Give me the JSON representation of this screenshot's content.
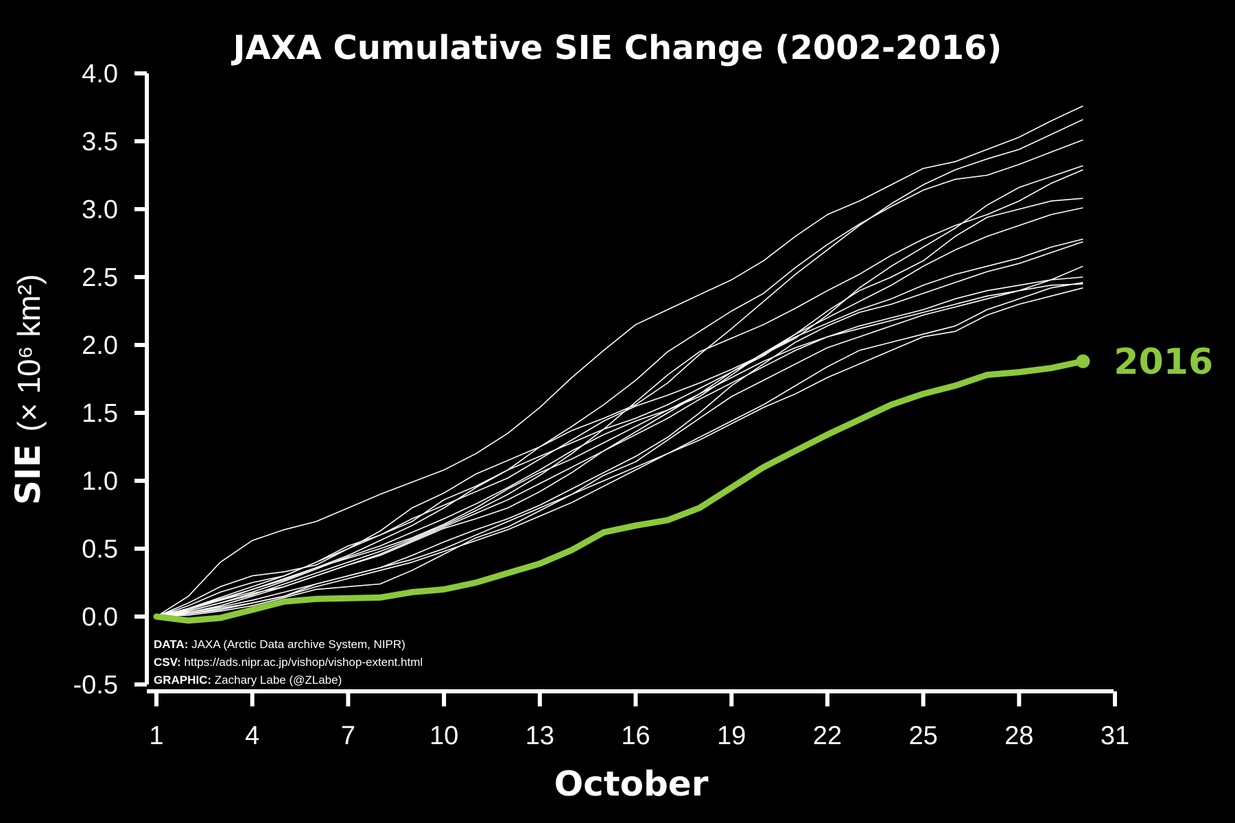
{
  "chart_data": {
    "type": "line",
    "title": "JAXA Cumulative SIE Change (2002-2016)",
    "xlabel": "October",
    "ylabel_bold": "SIE",
    "ylabel_units": "(× 10⁶ km²)",
    "xlim": [
      1,
      31
    ],
    "ylim": [
      -0.5,
      4.0
    ],
    "xticks": [
      1,
      4,
      7,
      10,
      13,
      16,
      19,
      22,
      25,
      28,
      31
    ],
    "yticks": [
      -0.5,
      0.0,
      0.5,
      1.0,
      1.5,
      2.0,
      2.5,
      3.0,
      3.5,
      4.0
    ],
    "ytick_labels": [
      "-0.5",
      "0.0",
      "0.5",
      "1.0",
      "1.5",
      "2.0",
      "2.5",
      "3.0",
      "3.5",
      "4.0"
    ],
    "xtick_labels": [
      "1",
      "4",
      "7",
      "10",
      "13",
      "16",
      "19",
      "22",
      "25",
      "28",
      "31"
    ],
    "background_color": "#000000",
    "axis_color": "#ffffff",
    "other_years_color": "#ffffff",
    "highlight_color": "#8cc83c",
    "grid": false,
    "days": [
      1,
      2,
      3,
      4,
      5,
      6,
      7,
      8,
      9,
      10,
      11,
      12,
      13,
      14,
      15,
      16,
      17,
      18,
      19,
      20,
      21,
      22,
      23,
      24,
      25,
      26,
      27,
      28,
      29,
      30
    ],
    "series": [
      {
        "values": [
          0.0,
          0.15,
          0.4,
          0.56,
          0.64,
          0.7,
          0.8,
          0.9,
          0.99,
          1.08,
          1.2,
          1.35,
          1.54,
          1.76,
          1.96,
          2.15,
          2.26,
          2.37,
          2.48,
          2.62,
          2.8,
          2.96,
          3.06,
          3.18,
          3.3,
          3.35,
          3.44,
          3.53,
          3.65,
          3.76
        ]
      },
      {
        "values": [
          0.0,
          0.1,
          0.22,
          0.3,
          0.33,
          0.38,
          0.5,
          0.63,
          0.8,
          0.91,
          1.05,
          1.15,
          1.25,
          1.37,
          1.46,
          1.56,
          1.72,
          1.93,
          2.12,
          2.32,
          2.52,
          2.7,
          2.88,
          3.04,
          3.18,
          3.29,
          3.37,
          3.44,
          3.55,
          3.66
        ]
      },
      {
        "values": [
          0.0,
          0.05,
          0.12,
          0.2,
          0.27,
          0.36,
          0.45,
          0.56,
          0.67,
          0.8,
          0.95,
          1.08,
          1.25,
          1.4,
          1.56,
          1.74,
          1.95,
          2.1,
          2.25,
          2.38,
          2.57,
          2.74,
          2.89,
          3.02,
          3.14,
          3.22,
          3.25,
          3.33,
          3.42,
          3.51
        ]
      },
      {
        "values": [
          0.0,
          0.08,
          0.18,
          0.25,
          0.3,
          0.4,
          0.5,
          0.6,
          0.72,
          0.82,
          0.92,
          1.02,
          1.16,
          1.3,
          1.44,
          1.55,
          1.63,
          1.72,
          1.82,
          1.93,
          2.05,
          2.22,
          2.42,
          2.58,
          2.72,
          2.86,
          3.03,
          3.16,
          3.24,
          3.32
        ]
      },
      {
        "values": [
          0.0,
          0.04,
          0.1,
          0.16,
          0.24,
          0.32,
          0.4,
          0.48,
          0.57,
          0.67,
          0.78,
          0.9,
          1.04,
          1.2,
          1.38,
          1.58,
          1.78,
          1.95,
          2.05,
          2.15,
          2.27,
          2.4,
          2.52,
          2.66,
          2.78,
          2.88,
          2.96,
          3.06,
          3.19,
          3.29
        ]
      },
      {
        "values": [
          0.0,
          0.06,
          0.14,
          0.22,
          0.3,
          0.4,
          0.52,
          0.6,
          0.7,
          0.86,
          0.96,
          1.08,
          1.18,
          1.28,
          1.38,
          1.46,
          1.56,
          1.68,
          1.8,
          1.92,
          2.08,
          2.25,
          2.4,
          2.5,
          2.62,
          2.8,
          2.94,
          3.0,
          3.06,
          3.08
        ]
      },
      {
        "values": [
          0.0,
          0.03,
          0.08,
          0.15,
          0.22,
          0.3,
          0.38,
          0.45,
          0.55,
          0.65,
          0.72,
          0.8,
          0.92,
          1.06,
          1.22,
          1.36,
          1.5,
          1.64,
          1.8,
          1.94,
          2.08,
          2.2,
          2.32,
          2.44,
          2.58,
          2.7,
          2.8,
          2.88,
          2.96,
          3.01
        ]
      },
      {
        "values": [
          0.0,
          0.05,
          0.12,
          0.18,
          0.26,
          0.35,
          0.44,
          0.52,
          0.62,
          0.72,
          0.83,
          0.95,
          1.08,
          1.22,
          1.34,
          1.44,
          1.52,
          1.62,
          1.78,
          1.94,
          2.06,
          2.16,
          2.26,
          2.34,
          2.44,
          2.52,
          2.58,
          2.64,
          2.72,
          2.78
        ]
      },
      {
        "values": [
          0.0,
          0.02,
          0.06,
          0.1,
          0.15,
          0.24,
          0.3,
          0.36,
          0.45,
          0.55,
          0.64,
          0.72,
          0.82,
          0.94,
          1.06,
          1.18,
          1.32,
          1.5,
          1.7,
          1.86,
          2.02,
          2.14,
          2.24,
          2.3,
          2.38,
          2.46,
          2.54,
          2.6,
          2.68,
          2.76
        ]
      },
      {
        "values": [
          0.0,
          0.04,
          0.1,
          0.17,
          0.22,
          0.3,
          0.38,
          0.46,
          0.56,
          0.66,
          0.76,
          0.86,
          0.98,
          1.1,
          1.22,
          1.34,
          1.46,
          1.6,
          1.72,
          1.84,
          1.96,
          2.06,
          2.14,
          2.2,
          2.26,
          2.34,
          2.4,
          2.44,
          2.48,
          2.5
        ]
      },
      {
        "values": [
          0.0,
          0.06,
          0.13,
          0.2,
          0.28,
          0.36,
          0.43,
          0.5,
          0.58,
          0.68,
          0.8,
          0.94,
          1.06,
          1.16,
          1.28,
          1.4,
          1.52,
          1.64,
          1.76,
          1.88,
          1.98,
          2.06,
          2.12,
          2.18,
          2.24,
          2.3,
          2.36,
          2.4,
          2.44,
          2.45
        ]
      },
      {
        "values": [
          0.0,
          0.03,
          0.07,
          0.12,
          0.18,
          0.24,
          0.3,
          0.36,
          0.42,
          0.5,
          0.6,
          0.7,
          0.8,
          0.9,
          1.0,
          1.1,
          1.2,
          1.32,
          1.44,
          1.56,
          1.7,
          1.84,
          1.96,
          2.02,
          2.08,
          2.14,
          2.26,
          2.34,
          2.42,
          2.46
        ]
      },
      {
        "values": [
          0.0,
          0.02,
          0.05,
          0.1,
          0.15,
          0.22,
          0.28,
          0.34,
          0.4,
          0.48,
          0.56,
          0.64,
          0.74,
          0.84,
          0.96,
          1.08,
          1.2,
          1.3,
          1.42,
          1.54,
          1.64,
          1.76,
          1.86,
          1.96,
          2.06,
          2.1,
          2.22,
          2.3,
          2.36,
          2.42
        ]
      },
      {
        "values": [
          0.0,
          0.01,
          0.04,
          0.08,
          0.14,
          0.2,
          0.22,
          0.24,
          0.34,
          0.46,
          0.58,
          0.66,
          0.78,
          0.9,
          1.04,
          1.14,
          1.3,
          1.46,
          1.62,
          1.74,
          1.86,
          1.98,
          2.06,
          2.14,
          2.22,
          2.28,
          2.34,
          2.4,
          2.48,
          2.58
        ]
      }
    ],
    "highlight": {
      "name": "2016",
      "label": "2016",
      "values": [
        0.0,
        -0.03,
        -0.01,
        0.05,
        0.11,
        0.13,
        0.135,
        0.14,
        0.18,
        0.2,
        0.25,
        0.32,
        0.39,
        0.49,
        0.62,
        0.67,
        0.71,
        0.8,
        0.95,
        1.1,
        1.22,
        1.34,
        1.45,
        1.56,
        1.64,
        1.7,
        1.78,
        1.8,
        1.83,
        1.88
      ]
    },
    "credits": [
      {
        "key": "DATA:",
        "text": " JAXA (Arctic Data archive System, NIPR)"
      },
      {
        "key": "CSV:",
        "text": " https://ads.nipr.ac.jp/vishop/vishop-extent.html"
      },
      {
        "key": "GRAPHIC:",
        "text": " Zachary Labe (@ZLabe)"
      }
    ]
  }
}
